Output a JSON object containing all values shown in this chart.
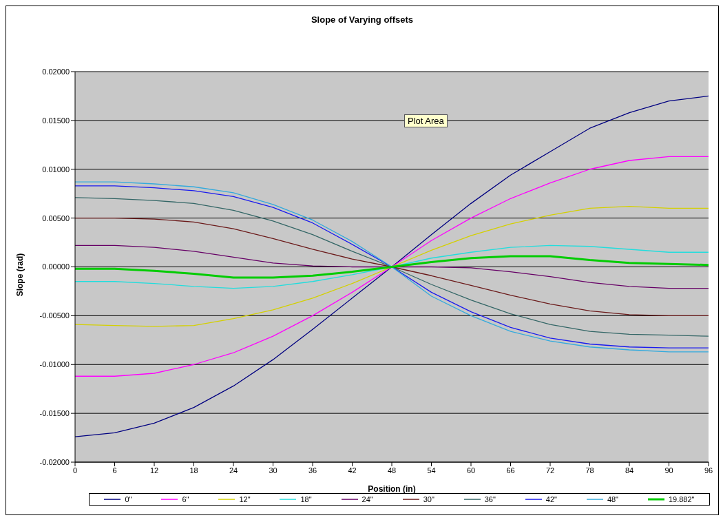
{
  "chart_data": {
    "type": "line",
    "title": "Slope of Varying offsets",
    "xlabel": "Position (in)",
    "ylabel": "Slope (rad)",
    "annotations": [
      "Plot Area"
    ],
    "x": [
      0,
      6,
      12,
      18,
      24,
      30,
      36,
      42,
      48,
      54,
      60,
      66,
      72,
      78,
      84,
      90,
      96
    ],
    "xlim": [
      0,
      96
    ],
    "xticks": [
      0,
      6,
      12,
      18,
      24,
      30,
      36,
      42,
      48,
      54,
      60,
      66,
      72,
      78,
      84,
      90,
      96
    ],
    "ylim": [
      -0.02,
      0.02
    ],
    "yticks": [
      {
        "value": -0.02,
        "label": "-0.02000"
      },
      {
        "value": -0.015,
        "label": "-0.01500"
      },
      {
        "value": -0.01,
        "label": "-0.01000"
      },
      {
        "value": -0.005,
        "label": "-0.00500"
      },
      {
        "value": 0,
        "label": "0.00000"
      },
      {
        "value": 0.005,
        "label": "0.00500"
      },
      {
        "value": 0.01,
        "label": "0.01000"
      },
      {
        "value": 0.015,
        "label": "0.01500"
      },
      {
        "value": 0.02,
        "label": "0.02000"
      }
    ],
    "grid": "y",
    "legend": "bottom",
    "marker": "none",
    "line_style": "solid",
    "series": [
      {
        "name": "0\"",
        "color": "#000080",
        "values": [
          -0.0174,
          -0.017,
          -0.016,
          -0.0144,
          -0.0122,
          -0.0095,
          -0.0064,
          -0.0032,
          0,
          0.0033,
          0.0065,
          0.0094,
          0.0118,
          0.0142,
          0.0158,
          0.017,
          0.0175
        ]
      },
      {
        "name": "6\"",
        "color": "#ff00ff",
        "values": [
          -0.0112,
          -0.0112,
          -0.0109,
          -0.01,
          -0.0088,
          -0.0071,
          -0.005,
          -0.0026,
          0,
          0.0027,
          0.005,
          0.007,
          0.0086,
          0.01,
          0.0109,
          0.0113,
          0.0113
        ]
      },
      {
        "name": "12\"",
        "color": "#d4d000",
        "values": [
          -0.0059,
          -0.006,
          -0.0061,
          -0.006,
          -0.0053,
          -0.0044,
          -0.0032,
          -0.0017,
          0,
          0.0017,
          0.0032,
          0.0044,
          0.0053,
          0.006,
          0.0062,
          0.006,
          0.006
        ]
      },
      {
        "name": "18\"",
        "color": "#22dddd",
        "values": [
          -0.0015,
          -0.0015,
          -0.0017,
          -0.002,
          -0.0022,
          -0.002,
          -0.0015,
          -0.0008,
          0,
          0.0009,
          0.0015,
          0.002,
          0.0022,
          0.0021,
          0.0018,
          0.0015,
          0.0015
        ]
      },
      {
        "name": "24\"",
        "color": "#660066",
        "values": [
          0.0022,
          0.0022,
          0.002,
          0.0016,
          0.001,
          0.0004,
          0.0001,
          0,
          0,
          0,
          -0.0001,
          -0.0005,
          -0.001,
          -0.0016,
          -0.002,
          -0.0022,
          -0.0022
        ]
      },
      {
        "name": "30\"",
        "color": "#6b1a1a",
        "values": [
          0.005,
          0.005,
          0.0049,
          0.0046,
          0.0039,
          0.0029,
          0.0018,
          0.0008,
          0,
          -0.0009,
          -0.0019,
          -0.0029,
          -0.0038,
          -0.0045,
          -0.0049,
          -0.005,
          -0.005
        ]
      },
      {
        "name": "36\"",
        "color": "#336666",
        "values": [
          0.0071,
          0.007,
          0.0068,
          0.0065,
          0.0058,
          0.0047,
          0.0033,
          0.0016,
          0,
          -0.0018,
          -0.0034,
          -0.0048,
          -0.0059,
          -0.0066,
          -0.0069,
          -0.007,
          -0.0071
        ]
      },
      {
        "name": "42\"",
        "color": "#1a1aee",
        "values": [
          0.0083,
          0.0083,
          0.0081,
          0.0078,
          0.0072,
          0.0061,
          0.0045,
          0.0023,
          0,
          -0.0026,
          -0.0046,
          -0.0062,
          -0.0073,
          -0.0079,
          -0.0082,
          -0.0083,
          -0.0083
        ]
      },
      {
        "name": "48\"",
        "color": "#33aadd",
        "values": [
          0.0087,
          0.0087,
          0.0085,
          0.0082,
          0.0076,
          0.0064,
          0.0048,
          0.0026,
          0,
          -0.003,
          -0.005,
          -0.0066,
          -0.0076,
          -0.0082,
          -0.0085,
          -0.0087,
          -0.0087
        ]
      },
      {
        "name": "19.882\"",
        "color": "#00cc00",
        "values": [
          -0.0002,
          -0.0002,
          -0.0004,
          -0.0007,
          -0.0011,
          -0.0011,
          -0.0009,
          -0.0005,
          0,
          0.0005,
          0.0009,
          0.0011,
          0.0011,
          0.0007,
          0.0004,
          0.0003,
          0.0002
        ]
      }
    ]
  }
}
